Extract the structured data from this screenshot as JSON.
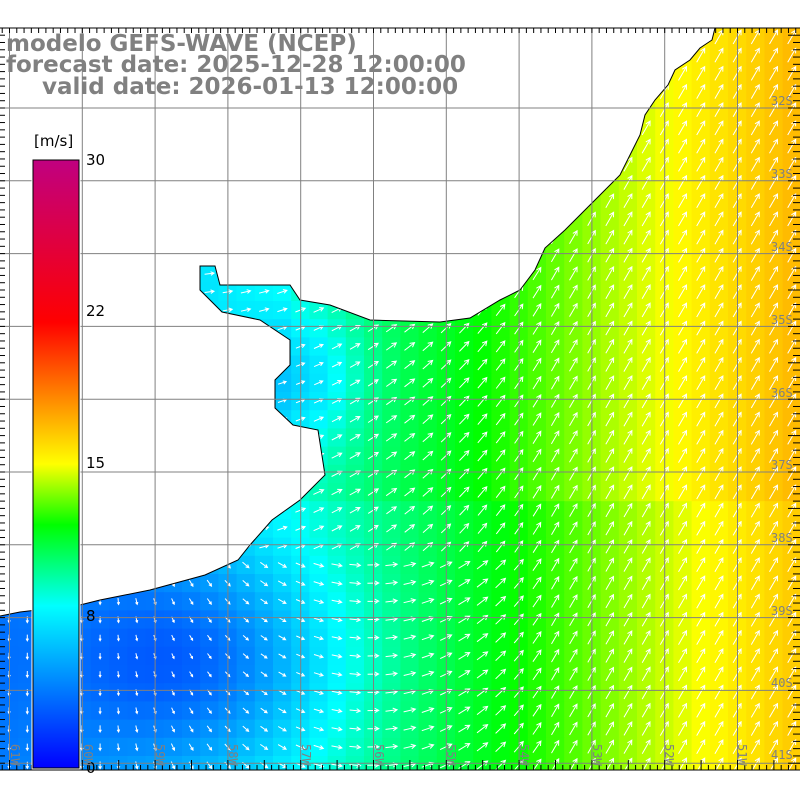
{
  "title": {
    "line1": "modelo GEFS-WAVE (NCEP)",
    "line2": "forecast date: 2025-12-28 12:00:00",
    "line3": "valid date: 2026-01-13 12:00:00"
  },
  "colorbar": {
    "unit": "[m/s]",
    "ticks": [
      "30",
      "22",
      "15",
      "8",
      "0"
    ],
    "range": [
      0,
      30
    ],
    "stops": [
      {
        "v": 0,
        "c": "#0000ff"
      },
      {
        "v": 8,
        "c": "#00ffff"
      },
      {
        "v": 12,
        "c": "#00ff00"
      },
      {
        "v": 15,
        "c": "#ffff00"
      },
      {
        "v": 22,
        "c": "#ff0000"
      },
      {
        "v": 30,
        "c": "#c00080"
      }
    ]
  },
  "lat_labels": [
    "32S",
    "33S",
    "34S",
    "35S",
    "36S",
    "37S",
    "38S",
    "39S",
    "40S",
    "41S"
  ],
  "lon_labels": [
    "61W",
    "60W",
    "59W",
    "58W",
    "57W",
    "56W",
    "55W",
    "54W",
    "53W",
    "52W",
    "51W"
  ]
}
